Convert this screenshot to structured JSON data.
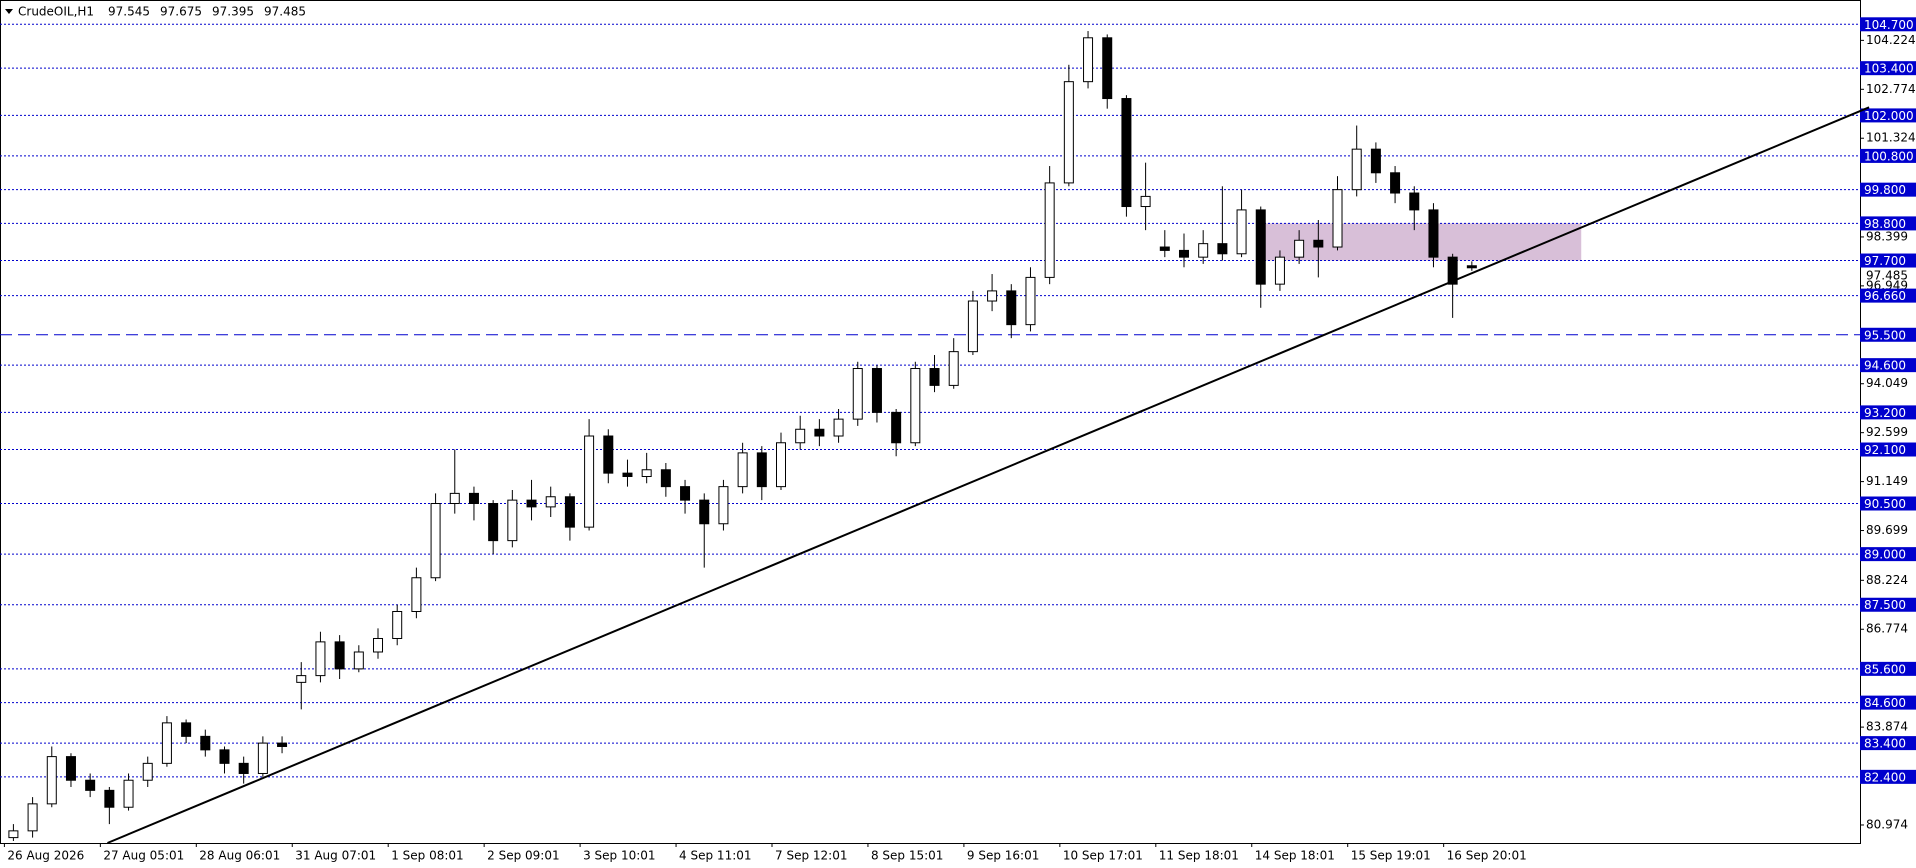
{
  "chart_data": {
    "type": "candlestick",
    "symbol": "CrudeOIL,H1",
    "categories": [
      "26 Aug 2026",
      null,
      null,
      null,
      null,
      "27 Aug 05:01",
      null,
      null,
      null,
      null,
      "28 Aug 06:01",
      null,
      null,
      null,
      null,
      "31 Aug 07:01",
      null,
      null,
      null,
      null,
      "1 Sep 08:01",
      null,
      null,
      null,
      null,
      "2 Sep 09:01",
      null,
      null,
      null,
      null,
      "3 Sep 10:01",
      null,
      null,
      null,
      null,
      "4 Sep 11:01",
      null,
      null,
      null,
      null,
      "7 Sep 12:01",
      null,
      null,
      null,
      null,
      "8 Sep 15:01",
      null,
      null,
      null,
      null,
      "9 Sep 16:01",
      null,
      null,
      null,
      null,
      "10 Sep 17:01",
      null,
      null,
      null,
      null,
      "11 Sep 18:01",
      null,
      null,
      null,
      null,
      "14 Sep 18:01",
      null,
      null,
      null,
      null,
      "15 Sep 19:01",
      null,
      null,
      null,
      null,
      "16 Sep 20:01",
      null
    ],
    "open": [
      80.6,
      80.8,
      81.6,
      83.0,
      82.3,
      82.0,
      81.5,
      82.3,
      82.8,
      84.0,
      83.6,
      83.2,
      82.8,
      82.5,
      83.4,
      85.2,
      85.4,
      86.4,
      85.6,
      86.1,
      86.5,
      87.3,
      88.3,
      90.5,
      90.8,
      90.5,
      89.4,
      90.6,
      90.4,
      90.7,
      89.8,
      92.5,
      91.4,
      91.3,
      91.5,
      91.0,
      90.6,
      89.9,
      91.0,
      92.0,
      91.0,
      92.3,
      92.7,
      92.5,
      93.0,
      94.5,
      93.2,
      92.3,
      94.5,
      94.0,
      95.0,
      96.5,
      96.8,
      95.8,
      97.2,
      100.0,
      103.0,
      104.3,
      102.5,
      99.3,
      98.1,
      98.0,
      97.8,
      98.2,
      97.9,
      99.2,
      97.0,
      97.8,
      98.3,
      98.1,
      99.8,
      101.0,
      100.3,
      99.7,
      99.2,
      97.8,
      97.545
    ],
    "high": [
      81.0,
      81.8,
      83.3,
      83.1,
      82.5,
      82.1,
      82.5,
      83.0,
      84.2,
      84.1,
      83.8,
      83.3,
      83.0,
      83.6,
      83.6,
      85.8,
      86.7,
      86.6,
      86.3,
      86.8,
      87.5,
      88.6,
      90.8,
      92.1,
      91.0,
      90.6,
      90.9,
      91.2,
      91.0,
      90.8,
      93.0,
      92.7,
      91.8,
      92.0,
      91.7,
      91.2,
      90.8,
      91.2,
      92.3,
      92.2,
      92.6,
      93.1,
      93.0,
      93.3,
      94.7,
      94.6,
      93.3,
      94.7,
      94.9,
      95.4,
      96.8,
      97.3,
      97.0,
      97.5,
      100.5,
      103.5,
      104.5,
      104.4,
      102.6,
      100.6,
      98.6,
      98.5,
      98.6,
      99.9,
      99.8,
      99.3,
      98.0,
      98.6,
      98.9,
      100.2,
      101.7,
      101.2,
      100.5,
      99.9,
      99.4,
      97.9,
      97.675
    ],
    "low": [
      80.5,
      80.6,
      81.5,
      82.1,
      81.8,
      81.0,
      81.4,
      82.1,
      82.7,
      83.4,
      83.0,
      82.5,
      82.2,
      82.4,
      83.1,
      84.4,
      85.2,
      85.3,
      85.5,
      85.9,
      86.3,
      87.1,
      88.2,
      90.2,
      90.0,
      89.0,
      89.2,
      90.0,
      90.1,
      89.4,
      89.7,
      91.1,
      91.0,
      91.1,
      90.7,
      90.2,
      88.6,
      89.7,
      90.8,
      90.6,
      90.9,
      92.1,
      92.2,
      92.3,
      92.8,
      92.9,
      91.9,
      92.2,
      93.8,
      93.9,
      94.9,
      96.2,
      95.4,
      95.6,
      97.0,
      99.9,
      102.8,
      102.2,
      99.0,
      98.6,
      97.8,
      97.5,
      97.6,
      97.7,
      97.8,
      96.3,
      96.8,
      97.6,
      97.2,
      98.0,
      99.6,
      100.0,
      99.4,
      98.6,
      97.5,
      96.0,
      97.395
    ],
    "close": [
      80.8,
      81.6,
      83.0,
      82.3,
      82.0,
      81.5,
      82.3,
      82.8,
      84.0,
      83.6,
      83.2,
      82.8,
      82.5,
      83.4,
      83.3,
      85.4,
      86.4,
      85.6,
      86.1,
      86.5,
      87.3,
      88.3,
      90.5,
      90.8,
      90.5,
      89.4,
      90.6,
      90.4,
      90.7,
      89.8,
      92.5,
      91.4,
      91.3,
      91.5,
      91.0,
      90.6,
      89.9,
      91.0,
      92.0,
      91.0,
      92.3,
      92.7,
      92.5,
      93.0,
      94.5,
      93.2,
      92.3,
      94.5,
      94.0,
      95.0,
      96.5,
      96.8,
      95.8,
      97.2,
      100.0,
      103.0,
      104.3,
      102.5,
      99.3,
      99.6,
      98.0,
      97.8,
      98.2,
      97.9,
      99.2,
      97.0,
      97.8,
      98.3,
      98.1,
      99.8,
      101.0,
      100.3,
      99.7,
      99.2,
      97.8,
      97.0,
      97.485
    ],
    "ylim": [
      80.44,
      105.42
    ],
    "yticks": [
      104.224,
      102.774,
      101.324,
      98.399,
      96.949,
      94.049,
      92.599,
      91.149,
      89.699,
      88.224,
      86.774,
      83.874,
      80.974
    ],
    "level_color": "#0000cd",
    "levels": [
      {
        "value": 104.7,
        "label": "104.700"
      },
      {
        "value": 103.4,
        "label": "103.400"
      },
      {
        "value": 102.0,
        "label": "102.000"
      },
      {
        "value": 100.8,
        "label": "100.800"
      },
      {
        "value": 99.8,
        "label": "99.800"
      },
      {
        "value": 98.8,
        "label": "98.800"
      },
      {
        "value": 97.7,
        "label": "97.700"
      },
      {
        "value": 96.66,
        "label": "96.660"
      },
      {
        "value": 95.5,
        "label": "95.500",
        "style": "dashed"
      },
      {
        "value": 94.6,
        "label": "94.600"
      },
      {
        "value": 93.2,
        "label": "93.200"
      },
      {
        "value": 92.1,
        "label": "92.100"
      },
      {
        "value": 90.5,
        "label": "90.500"
      },
      {
        "value": 89.0,
        "label": "89.000"
      },
      {
        "value": 87.5,
        "label": "87.500"
      },
      {
        "value": 85.6,
        "label": "85.600"
      },
      {
        "value": 84.6,
        "label": "84.600"
      },
      {
        "value": 83.4,
        "label": "83.400"
      },
      {
        "value": 82.4,
        "label": "82.400"
      }
    ],
    "trendline": {
      "x": [
        4.9,
        96.7
      ],
      "y": [
        80.44,
        102.24
      ],
      "color": "#000000"
    },
    "zone": {
      "x": [
        65,
        81.7
      ],
      "y": [
        97.7,
        98.8
      ],
      "color": "#d8bfd8"
    }
  }
}
